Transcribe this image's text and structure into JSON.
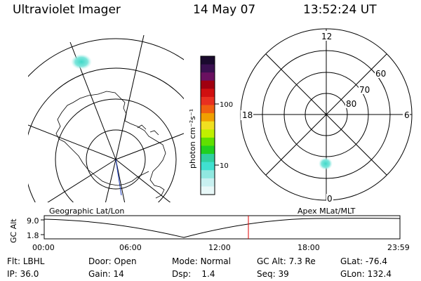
{
  "header": {
    "instrument": "Ultraviolet Imager",
    "date": "14 May 07",
    "time": "13:52:24 UT"
  },
  "colorbar": {
    "unit_label": "photon cm⁻²s⁻¹",
    "ticks": [
      "100",
      "10"
    ],
    "colors": [
      "#1a0a2e",
      "#3a1050",
      "#6a1060",
      "#a00010",
      "#d01010",
      "#e83020",
      "#f06010",
      "#f0a000",
      "#f0e020",
      "#c0f000",
      "#60e000",
      "#20d020",
      "#30d0a0",
      "#40e0d0",
      "#90e8e0",
      "#c8f0f0",
      "#e8f8f8"
    ]
  },
  "polar_plot": {
    "lat_labels": [
      "80",
      "70",
      "60"
    ],
    "mlt_labels": {
      "top": "12",
      "left": "18",
      "right": "6",
      "bottom": "0"
    }
  },
  "labels": {
    "left_panel": "Geographic Lat/Lon",
    "right_panel": "Apex MLat/MLT",
    "alt_axis": "GC Alt",
    "alt_ticks": [
      "9.0",
      "1.8"
    ]
  },
  "time_axis": [
    "00:00",
    "06:00",
    "12:00",
    "18:00",
    "23:59"
  ],
  "status": {
    "row1": [
      {
        "key": "Flt:",
        "value": "LBHL"
      },
      {
        "key": "Door:",
        "value": "Open"
      },
      {
        "key": "Mode:",
        "value": "Normal"
      },
      {
        "key": "GC Alt:",
        "value": "7.3 Re"
      },
      {
        "key": "GLat:",
        "value": "-76.4"
      }
    ],
    "row2": [
      {
        "key": "IP:",
        "value": "36.0"
      },
      {
        "key": "Gain:",
        "value": "14"
      },
      {
        "key": "Dsp:",
        "value": "1.4"
      },
      {
        "key": "Seq:",
        "value": "39"
      },
      {
        "key": "GLon:",
        "value": "132.4"
      }
    ]
  }
}
